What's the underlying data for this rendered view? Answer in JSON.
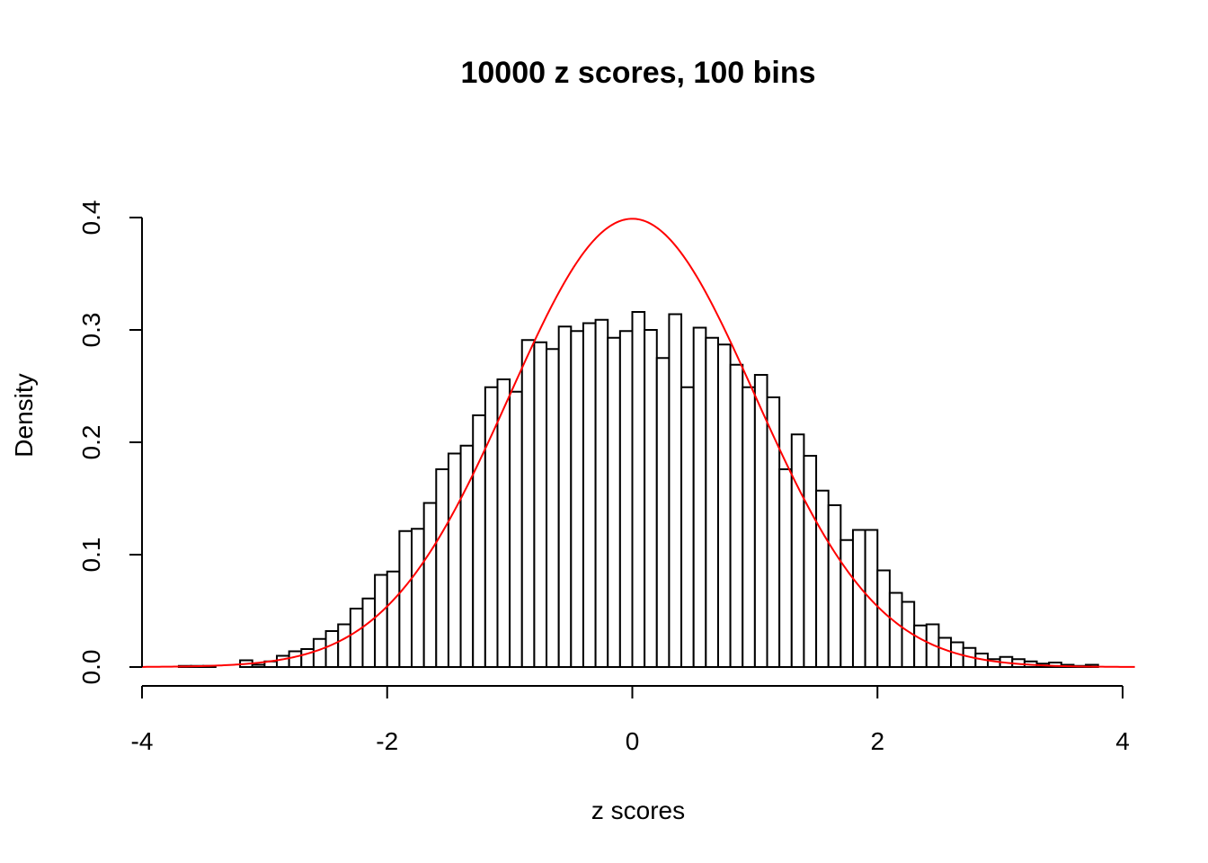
{
  "chart_data": {
    "type": "histogram",
    "title": "10000 z scores, 100 bins",
    "xlabel": "z scores",
    "ylabel": "Density",
    "xlim": [
      -4,
      4
    ],
    "ylim": [
      0,
      0.4
    ],
    "xticks": [
      "-4",
      "-2",
      "0",
      "2",
      "4"
    ],
    "yticks": [
      "0.0",
      "0.1",
      "0.2",
      "0.3",
      "0.4"
    ],
    "grid": false,
    "bin_start": -3.7,
    "bin_width": 0.1,
    "densities": [
      0.001,
      0.001,
      0.001,
      0,
      0,
      0.006,
      0.002,
      0.005,
      0.01,
      0.014,
      0.016,
      0.025,
      0.032,
      0.038,
      0.052,
      0.061,
      0.082,
      0.085,
      0.121,
      0.123,
      0.146,
      0.176,
      0.19,
      0.197,
      0.224,
      0.249,
      0.256,
      0.245,
      0.291,
      0.289,
      0.283,
      0.303,
      0.299,
      0.306,
      0.309,
      0.293,
      0.299,
      0.316,
      0.3,
      0.275,
      0.314,
      0.249,
      0.302,
      0.293,
      0.287,
      0.269,
      0.249,
      0.26,
      0.24,
      0.176,
      0.207,
      0.188,
      0.157,
      0.144,
      0.113,
      0.122,
      0.122,
      0.086,
      0.066,
      0.058,
      0.037,
      0.038,
      0.026,
      0.022,
      0.017,
      0.012,
      0.007,
      0.009,
      0.007,
      0.005,
      0.003,
      0.004,
      0.002,
      0.001,
      0.002
    ],
    "overlay": {
      "type": "line",
      "function": "standard normal density",
      "x_range": [
        -4,
        4.1
      ],
      "color": "#ff0000"
    },
    "bar_fill": "#ffffff",
    "bar_stroke": "#000000"
  }
}
